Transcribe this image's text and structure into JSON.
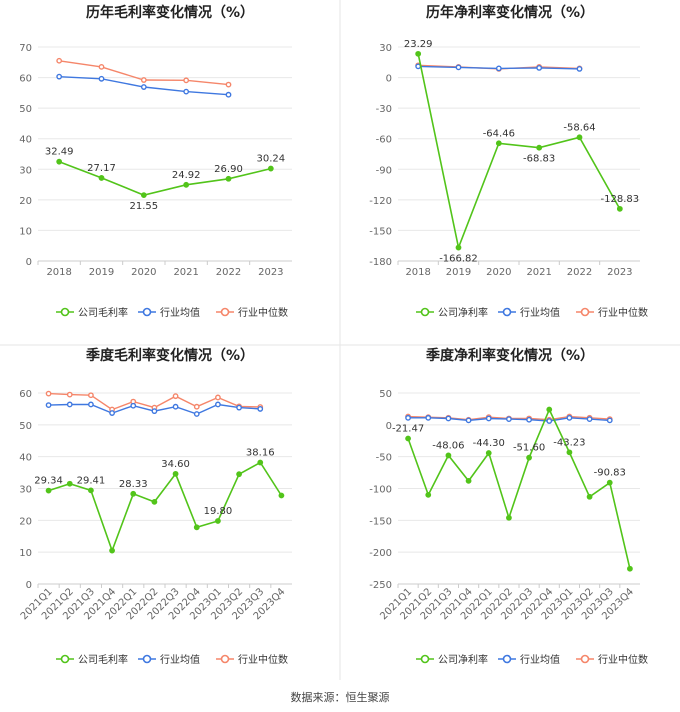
{
  "colors": {
    "company": "#52c41a",
    "industry_avg": "#3f78e0",
    "industry_median": "#f5866a",
    "grid": "#e8e8e8",
    "axis_text": "#666666",
    "title": "#222222",
    "divider": "#e6e6e6"
  },
  "legend_labels": {
    "industry_avg": "行业均值",
    "industry_median": "行业中位数"
  },
  "footer": {
    "source": "数据来源：恒生聚源"
  },
  "chart_data": [
    {
      "id": "annual-gross",
      "type": "line",
      "title": "历年毛利率变化情况（%）",
      "categories": [
        "2018",
        "2019",
        "2020",
        "2021",
        "2022",
        "2023"
      ],
      "ylim": [
        0,
        70
      ],
      "yticks": [
        0,
        10,
        20,
        30,
        40,
        50,
        60,
        70
      ],
      "rotate_x": false,
      "company_label": "公司毛利率",
      "series": [
        {
          "key": "company",
          "name": "公司毛利率",
          "values": [
            32.49,
            27.17,
            21.55,
            24.92,
            26.9,
            30.24
          ]
        },
        {
          "key": "industry_avg",
          "name": "行业均值",
          "values": [
            60.3,
            59.6,
            56.9,
            55.4,
            54.4,
            null
          ]
        },
        {
          "key": "industry_median",
          "name": "行业中位数",
          "values": [
            65.5,
            63.5,
            59.2,
            59.1,
            57.7,
            null
          ]
        }
      ],
      "data_labels": [
        "32.49",
        "27.17",
        "21.55",
        "24.92",
        "26.90",
        "30.24"
      ]
    },
    {
      "id": "annual-net",
      "type": "line",
      "title": "历年净利率变化情况（%）",
      "categories": [
        "2018",
        "2019",
        "2020",
        "2021",
        "2022",
        "2023"
      ],
      "ylim": [
        -180,
        30
      ],
      "yticks": [
        -180,
        -150,
        -120,
        -90,
        -60,
        -30,
        0,
        30
      ],
      "rotate_x": false,
      "company_label": "公司净利率",
      "series": [
        {
          "key": "company",
          "name": "公司净利率",
          "values": [
            23.29,
            -166.82,
            -64.46,
            -68.83,
            -58.64,
            -128.83
          ]
        },
        {
          "key": "industry_avg",
          "name": "行业均值",
          "values": [
            11.0,
            10.0,
            9.0,
            9.5,
            8.5,
            null
          ]
        },
        {
          "key": "industry_median",
          "name": "行业中位数",
          "values": [
            12.0,
            10.5,
            8.5,
            10.5,
            9.0,
            null
          ]
        }
      ],
      "data_labels": [
        "23.29",
        "-166.82",
        "-64.46",
        "-68.83",
        "-58.64",
        "-128.83"
      ]
    },
    {
      "id": "quarterly-gross",
      "type": "line",
      "title": "季度毛利率变化情况（%）",
      "categories": [
        "2021Q1",
        "2021Q2",
        "2021Q3",
        "2021Q4",
        "2022Q1",
        "2022Q2",
        "2022Q3",
        "2022Q4",
        "2023Q1",
        "2023Q2",
        "2023Q3",
        "2023Q4"
      ],
      "ylim": [
        0,
        60
      ],
      "yticks": [
        0,
        10,
        20,
        30,
        40,
        50,
        60
      ],
      "rotate_x": true,
      "company_label": "公司毛利率",
      "series": [
        {
          "key": "company",
          "name": "公司毛利率",
          "values": [
            29.34,
            31.5,
            29.41,
            10.5,
            28.33,
            25.8,
            34.6,
            17.8,
            19.8,
            34.5,
            38.16,
            27.8
          ]
        },
        {
          "key": "industry_avg",
          "name": "行业均值",
          "values": [
            56.2,
            56.4,
            56.4,
            53.7,
            56.0,
            54.3,
            55.7,
            53.4,
            56.4,
            55.4,
            55.0,
            null
          ]
        },
        {
          "key": "industry_median",
          "name": "行业中位数",
          "values": [
            59.8,
            59.5,
            59.3,
            54.8,
            57.3,
            55.4,
            59.0,
            55.7,
            58.6,
            55.8,
            55.6,
            null
          ]
        }
      ],
      "data_labels": [
        "29.34",
        null,
        "29.41",
        null,
        "28.33",
        null,
        "34.60",
        null,
        "19.80",
        null,
        "38.16",
        null
      ]
    },
    {
      "id": "quarterly-net",
      "type": "line",
      "title": "季度净利率变化情况（%）",
      "categories": [
        "2021Q1",
        "2021Q2",
        "2021Q3",
        "2021Q4",
        "2022Q1",
        "2022Q2",
        "2022Q3",
        "2022Q4",
        "2023Q1",
        "2023Q2",
        "2023Q3",
        "2023Q4"
      ],
      "ylim": [
        -250,
        50
      ],
      "yticks": [
        -250,
        -200,
        -150,
        -100,
        -50,
        0,
        50
      ],
      "rotate_x": true,
      "company_label": "公司净利率",
      "series": [
        {
          "key": "company",
          "name": "公司净利率",
          "values": [
            -21.47,
            -110,
            -48.06,
            -88,
            -44.3,
            -146,
            -51.6,
            24,
            -43.23,
            -113,
            -90.83,
            -226
          ]
        },
        {
          "key": "industry_avg",
          "name": "行业均值",
          "values": [
            11,
            11,
            10,
            7,
            10,
            9,
            8,
            6,
            11,
            9,
            7,
            null
          ]
        },
        {
          "key": "industry_median",
          "name": "行业中位数",
          "values": [
            13,
            12,
            11,
            8,
            12,
            10,
            10,
            8,
            13,
            11,
            9,
            null
          ]
        }
      ],
      "data_labels": [
        "-21.47",
        null,
        "-48.06",
        null,
        "-44.30",
        null,
        "-51.60",
        null,
        "-43.23",
        null,
        "-90.83",
        null
      ]
    }
  ]
}
